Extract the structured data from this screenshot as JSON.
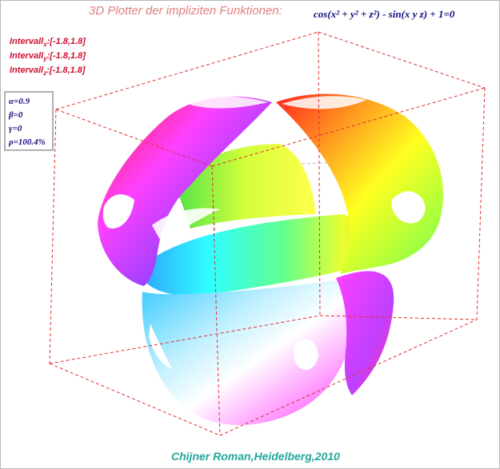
{
  "title": "3D Plotter der impliziten Funktionen:",
  "formula": "cos(x² + y² + z²) - sin(x y z) + 1=0",
  "intervals": [
    {
      "prefix": "Intervall",
      "axis": "x",
      "value": ":[-1.8,1.8]"
    },
    {
      "prefix": "Intervall",
      "axis": "y",
      "value": ":[-1.8,1.8]"
    },
    {
      "prefix": "Intervall",
      "axis": "z",
      "value": ":[-1.8,1.8]"
    }
  ],
  "params": [
    "α=0.9",
    "β=0",
    "γ=0",
    "ρ=100.4%"
  ],
  "footer": "Chijner Roman,Heidelberg,2010",
  "colors": {
    "title": "#e08080",
    "formula": "#101080",
    "interval": "#d01030",
    "params": "#1a1080",
    "footer": "#23a89c",
    "box_lines": "#e03030",
    "box_back_lines": "#bbbbbb"
  }
}
